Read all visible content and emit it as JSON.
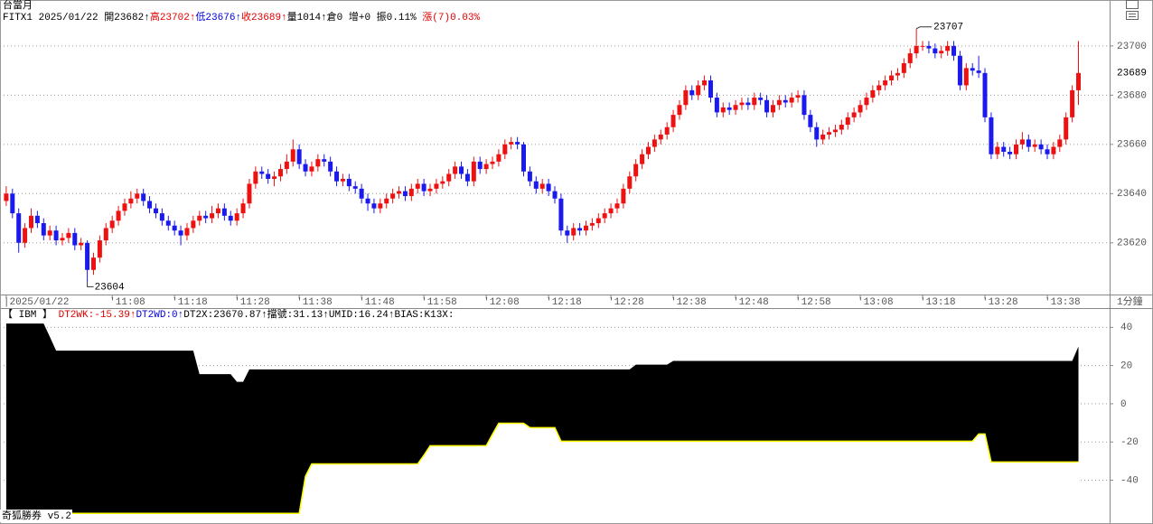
{
  "window_title": "台當月",
  "info": [
    {
      "text": "FITX1 2025/01/22 開23682↑",
      "color": "#000000"
    },
    {
      "text": "高23702↑",
      "color": "#e00000"
    },
    {
      "text": "低23676↑",
      "color": "#0000e0"
    },
    {
      "text": "收23689↑",
      "color": "#e00000"
    },
    {
      "text": "量1014↑倉0 增+0 振0.11% ",
      "color": "#000000"
    },
    {
      "text": "漲(7)0.03%",
      "color": "#e00000"
    }
  ],
  "chart_data": [
    {
      "type": "candlestick",
      "up_color": "#ee1111",
      "down_color": "#1a1aee",
      "xlim": [
        -1,
        177
      ],
      "xticks": [
        {
          "value": 0,
          "label": "|2025/01/22"
        },
        {
          "value": 17,
          "label": "'11:08"
        },
        {
          "value": 27,
          "label": "'11:18"
        },
        {
          "value": 37,
          "label": "'11:28"
        },
        {
          "value": 47,
          "label": "'11:38"
        },
        {
          "value": 57,
          "label": "'11:48"
        },
        {
          "value": 67,
          "label": "'11:58"
        },
        {
          "value": 77,
          "label": "'12:08"
        },
        {
          "value": 87,
          "label": "'12:18"
        },
        {
          "value": 97,
          "label": "'12:28"
        },
        {
          "value": 107,
          "label": "'12:38"
        },
        {
          "value": 117,
          "label": "'12:48"
        },
        {
          "value": 127,
          "label": "'12:58"
        },
        {
          "value": 137,
          "label": "'13:08"
        },
        {
          "value": 147,
          "label": "'13:18"
        },
        {
          "value": 157,
          "label": "'13:28"
        },
        {
          "value": 167,
          "label": "'13:38"
        }
      ],
      "interval_label": "1分鐘",
      "ylim": [
        23599,
        23715
      ],
      "yticks": [
        23700,
        23680,
        23660,
        23640,
        23620
      ],
      "grid": true,
      "open": [
        23637,
        23640,
        23632,
        23620,
        23626,
        23631,
        23628,
        23623,
        23625,
        23621,
        23622,
        23624,
        23619,
        23620,
        23609,
        23614,
        23621,
        23626,
        23629,
        23633,
        23636,
        23638,
        23640,
        23637,
        23634,
        23632,
        23629,
        23627,
        23625,
        23623,
        23626,
        23629,
        23631,
        23630,
        23632,
        23634,
        23631,
        23629,
        23632,
        23636,
        23644,
        23649,
        23648,
        23646,
        23647,
        23650,
        23653,
        23658,
        23652,
        23649,
        23651,
        23654,
        23653,
        23649,
        23645,
        23646,
        23643,
        23642,
        23638,
        23636,
        23634,
        23636,
        23638,
        23640,
        23641,
        23639,
        23642,
        23644,
        23641,
        23642,
        23644,
        23645,
        23648,
        23651,
        23648,
        23645,
        23653,
        23650,
        23652,
        23653,
        23656,
        23660,
        23661,
        23660,
        23649,
        23645,
        23642,
        23644,
        23641,
        23638,
        23625,
        23623,
        23626,
        23625,
        23627,
        23628,
        23630,
        23632,
        23634,
        23636,
        23642,
        23647,
        23652,
        23656,
        23659,
        23662,
        23664,
        23667,
        23672,
        23676,
        23682,
        23680,
        23684,
        23686,
        23679,
        23673,
        23675,
        23674,
        23676,
        23677,
        23676,
        23679,
        23678,
        23673,
        23676,
        23678,
        23677,
        23679,
        23680,
        23672,
        23667,
        23662,
        23664,
        23665,
        23666,
        23668,
        23671,
        23673,
        23676,
        23679,
        23682,
        23684,
        23686,
        23688,
        23689,
        23693,
        23697,
        23700,
        23700,
        23699,
        23697,
        23698,
        23700,
        23696,
        23684,
        23691,
        23690,
        23689,
        23671,
        23656,
        23659,
        23657,
        23656,
        23660,
        23662,
        23659,
        23660,
        23658,
        23656,
        23659,
        23662,
        23671,
        23682
      ],
      "high": [
        23643,
        23642,
        23634,
        23628,
        23634,
        23633,
        23630,
        23627,
        23627,
        23624,
        23626,
        23626,
        23622,
        23621,
        23616,
        23623,
        23628,
        23631,
        23635,
        23638,
        23641,
        23642,
        23642,
        23639,
        23636,
        23634,
        23631,
        23629,
        23627,
        23628,
        23631,
        23633,
        23633,
        23635,
        23636,
        23636,
        23633,
        23634,
        23638,
        23646,
        23651,
        23651,
        23650,
        23649,
        23652,
        23656,
        23662,
        23660,
        23654,
        23653,
        23656,
        23656,
        23655,
        23651,
        23648,
        23648,
        23645,
        23644,
        23640,
        23638,
        23638,
        23640,
        23642,
        23643,
        23643,
        23644,
        23646,
        23646,
        23644,
        23646,
        23647,
        23650,
        23653,
        23653,
        23650,
        23655,
        23655,
        23654,
        23655,
        23658,
        23662,
        23663,
        23663,
        23661,
        23651,
        23647,
        23646,
        23646,
        23643,
        23640,
        23627,
        23628,
        23628,
        23629,
        23630,
        23632,
        23634,
        23636,
        23638,
        23644,
        23649,
        23654,
        23658,
        23661,
        23664,
        23666,
        23669,
        23674,
        23678,
        23684,
        23684,
        23686,
        23688,
        23688,
        23681,
        23677,
        23677,
        23678,
        23679,
        23679,
        23681,
        23681,
        23680,
        23678,
        23680,
        23680,
        23681,
        23682,
        23682,
        23674,
        23669,
        23666,
        23667,
        23668,
        23670,
        23673,
        23675,
        23678,
        23681,
        23684,
        23686,
        23688,
        23690,
        23691,
        23695,
        23699,
        23707,
        23702,
        23702,
        23701,
        23700,
        23702,
        23702,
        23698,
        23693,
        23693,
        23696,
        23691,
        23673,
        23661,
        23661,
        23659,
        23662,
        23665,
        23664,
        23662,
        23662,
        23660,
        23661,
        23664,
        23673,
        23684,
        23702
      ],
      "low": [
        23635,
        23630,
        23616,
        23618,
        23624,
        23626,
        23621,
        23621,
        23619,
        23619,
        23620,
        23617,
        23617,
        23604,
        23607,
        23612,
        23619,
        23624,
        23627,
        23631,
        23634,
        23636,
        23635,
        23632,
        23630,
        23627,
        23625,
        23623,
        23619,
        23621,
        23624,
        23627,
        23628,
        23628,
        23630,
        23629,
        23627,
        23627,
        23630,
        23634,
        23642,
        23646,
        23644,
        23643,
        23645,
        23648,
        23651,
        23650,
        23647,
        23647,
        23649,
        23651,
        23647,
        23643,
        23643,
        23641,
        23640,
        23636,
        23633,
        23632,
        23632,
        23634,
        23636,
        23638,
        23637,
        23637,
        23640,
        23639,
        23639,
        23640,
        23642,
        23643,
        23646,
        23646,
        23643,
        23643,
        23648,
        23648,
        23650,
        23651,
        23654,
        23658,
        23658,
        23647,
        23643,
        23640,
        23640,
        23639,
        23636,
        23623,
        23620,
        23621,
        23623,
        23623,
        23625,
        23626,
        23628,
        23630,
        23632,
        23634,
        23640,
        23645,
        23650,
        23654,
        23657,
        23660,
        23662,
        23665,
        23670,
        23674,
        23678,
        23678,
        23682,
        23677,
        23671,
        23671,
        23672,
        23672,
        23674,
        23674,
        23674,
        23676,
        23671,
        23671,
        23674,
        23675,
        23675,
        23677,
        23670,
        23665,
        23659,
        23660,
        23662,
        23663,
        23664,
        23666,
        23669,
        23671,
        23674,
        23677,
        23680,
        23682,
        23684,
        23686,
        23687,
        23691,
        23695,
        23698,
        23697,
        23695,
        23695,
        23696,
        23694,
        23682,
        23682,
        23688,
        23687,
        23669,
        23654,
        23654,
        23655,
        23654,
        23654,
        23658,
        23657,
        23657,
        23656,
        23654,
        23654,
        23657,
        23660,
        23669,
        23676
      ],
      "close": [
        23640,
        23632,
        23620,
        23626,
        23631,
        23628,
        23623,
        23625,
        23621,
        23622,
        23624,
        23619,
        23620,
        23609,
        23614,
        23621,
        23626,
        23629,
        23633,
        23636,
        23638,
        23640,
        23637,
        23634,
        23632,
        23629,
        23627,
        23625,
        23623,
        23626,
        23629,
        23631,
        23630,
        23632,
        23634,
        23631,
        23629,
        23632,
        23636,
        23644,
        23649,
        23648,
        23646,
        23647,
        23650,
        23653,
        23658,
        23652,
        23649,
        23651,
        23654,
        23653,
        23649,
        23645,
        23646,
        23643,
        23642,
        23638,
        23636,
        23634,
        23636,
        23638,
        23640,
        23641,
        23639,
        23642,
        23644,
        23641,
        23642,
        23644,
        23645,
        23648,
        23651,
        23648,
        23645,
        23653,
        23650,
        23652,
        23653,
        23656,
        23660,
        23661,
        23660,
        23649,
        23645,
        23642,
        23644,
        23641,
        23638,
        23625,
        23623,
        23626,
        23625,
        23627,
        23628,
        23630,
        23632,
        23634,
        23636,
        23642,
        23647,
        23652,
        23656,
        23659,
        23662,
        23664,
        23667,
        23672,
        23676,
        23682,
        23680,
        23684,
        23686,
        23679,
        23673,
        23675,
        23674,
        23676,
        23677,
        23676,
        23679,
        23678,
        23673,
        23676,
        23678,
        23677,
        23679,
        23680,
        23672,
        23667,
        23662,
        23664,
        23665,
        23666,
        23668,
        23671,
        23673,
        23676,
        23679,
        23682,
        23684,
        23686,
        23688,
        23689,
        23693,
        23697,
        23700,
        23700,
        23699,
        23697,
        23698,
        23700,
        23696,
        23684,
        23691,
        23690,
        23689,
        23671,
        23656,
        23659,
        23657,
        23656,
        23660,
        23662,
        23659,
        23660,
        23658,
        23656,
        23659,
        23662,
        23671,
        23682,
        23689
      ]
    },
    {
      "type": "band",
      "header": [
        {
          "text": "【 IBM 】 ",
          "color": "#000000"
        },
        {
          "text": "DT2WK:-15.39↑",
          "color": "#e00000"
        },
        {
          "text": "DT2WD:0↑",
          "color": "#0000e0"
        },
        {
          "text": "DT2X:23670.87↑擋號:31.13↑UMID:16.24↑BIAS:K13X:",
          "color": "#000000"
        }
      ],
      "xlim": [
        -1,
        177
      ],
      "ylim": [
        -62,
        43
      ],
      "yticks": [
        40,
        20,
        0,
        -20,
        -40
      ],
      "grid": true,
      "series": [
        {
          "color": "#000000",
          "values": [
            42,
            42,
            42,
            42,
            42,
            42,
            42,
            35,
            27.8,
            27.8,
            27.8,
            27.8,
            27.8,
            27.8,
            27.8,
            27.8,
            27.8,
            27.8,
            27.8,
            27.8,
            27.8,
            27.8,
            27.8,
            27.8,
            27.8,
            27.8,
            27.8,
            27.8,
            27.8,
            27.8,
            27.8,
            15.5,
            15.5,
            15.5,
            15.5,
            15.5,
            15.5,
            11.5,
            11.5,
            18,
            18,
            18,
            18,
            18,
            18,
            18,
            18,
            18,
            18,
            18,
            18,
            18,
            18,
            18,
            18,
            18,
            18,
            18,
            18,
            18,
            18,
            18,
            18,
            18,
            18,
            18,
            18,
            18,
            18,
            18,
            18,
            18,
            18,
            18,
            18,
            18,
            18,
            18,
            18,
            18,
            18,
            18,
            18,
            18,
            18,
            18,
            18,
            18,
            18,
            18,
            18,
            18,
            18,
            18,
            18,
            18,
            18,
            18,
            18,
            18,
            18,
            20.5,
            20.5,
            20.5,
            20.5,
            20.5,
            20.5,
            22.4,
            22.4,
            22.4,
            22.4,
            22.4,
            22.4,
            22.4,
            22.4,
            22.4,
            22.4,
            22.4,
            22.4,
            22.4,
            22.4,
            22.4,
            22.4,
            22.4,
            22.4,
            22.4,
            22.4,
            22.4,
            22.4,
            22.4,
            22.4,
            22.4,
            22.4,
            22.4,
            22.4,
            22.4,
            22.4,
            22.4,
            22.4,
            22.4,
            22.4,
            22.4,
            22.4,
            22.4,
            22.4,
            22.4,
            22.4,
            22.4,
            22.4,
            22.4,
            22.4,
            22.4,
            22.4,
            22.4,
            22.4,
            22.4,
            22.4,
            22.4,
            22.4,
            22.4,
            22.4,
            22.4,
            22.4,
            22.4,
            22.4,
            22.4,
            22.4,
            22.4,
            22.4,
            22.4,
            22.4,
            22.4,
            30
          ]
        },
        {
          "color": "#ffff00",
          "values": [
            -57.4,
            -57.4,
            -57.4,
            -57.4,
            -57.4,
            -57.4,
            -57.4,
            -57.4,
            -57.4,
            -57.4,
            -57.4,
            -57.4,
            -57.4,
            -57.4,
            -57.4,
            -57.4,
            -57.4,
            -57.4,
            -57.4,
            -57.4,
            -57.4,
            -57.4,
            -57.4,
            -57.4,
            -57.4,
            -57.4,
            -57.4,
            -57.4,
            -57.4,
            -57.4,
            -57.4,
            -57.4,
            -57.4,
            -57.4,
            -57.4,
            -57.4,
            -57.4,
            -57.4,
            -57.4,
            -57.4,
            -57.4,
            -57.4,
            -57.4,
            -57.4,
            -57.4,
            -57.4,
            -57.4,
            -57.4,
            -38,
            -31.5,
            -31.5,
            -31.5,
            -31.5,
            -31.5,
            -31.5,
            -31.5,
            -31.5,
            -31.5,
            -31.5,
            -31.5,
            -31.5,
            -31.5,
            -31.5,
            -31.5,
            -31.5,
            -31.5,
            -31.5,
            -27,
            -22,
            -22,
            -22,
            -22,
            -22,
            -22,
            -22,
            -22,
            -22,
            -22,
            -16,
            -10.2,
            -10.2,
            -10.2,
            -10.2,
            -10.2,
            -12.5,
            -12.5,
            -12.5,
            -12.5,
            -12.5,
            -19.6,
            -19.6,
            -19.6,
            -19.6,
            -19.6,
            -19.6,
            -19.6,
            -19.6,
            -19.6,
            -19.6,
            -19.6,
            -19.6,
            -19.6,
            -19.6,
            -19.6,
            -19.6,
            -19.6,
            -19.6,
            -19.6,
            -19.6,
            -19.6,
            -19.6,
            -19.6,
            -19.6,
            -19.6,
            -19.6,
            -19.6,
            -19.6,
            -19.6,
            -19.6,
            -19.6,
            -19.6,
            -19.6,
            -19.6,
            -19.6,
            -19.6,
            -19.6,
            -19.6,
            -19.6,
            -19.6,
            -19.6,
            -19.6,
            -19.6,
            -19.6,
            -19.6,
            -19.6,
            -19.6,
            -19.6,
            -19.6,
            -19.6,
            -19.6,
            -19.6,
            -19.6,
            -19.6,
            -19.6,
            -19.6,
            -19.6,
            -19.6,
            -19.6,
            -19.6,
            -19.6,
            -19.6,
            -19.6,
            -19.6,
            -19.6,
            -19.6,
            -19.6,
            -15.8,
            -15.8,
            -30.5,
            -30.5,
            -30.5,
            -30.5,
            -30.5,
            -30.5,
            -30.5,
            -30.5,
            -30.5,
            -30.5,
            -30.5,
            -30.5,
            -30.5,
            -30.5,
            -30.5
          ]
        }
      ]
    }
  ],
  "footer": "奇狐勝券 v5.2"
}
